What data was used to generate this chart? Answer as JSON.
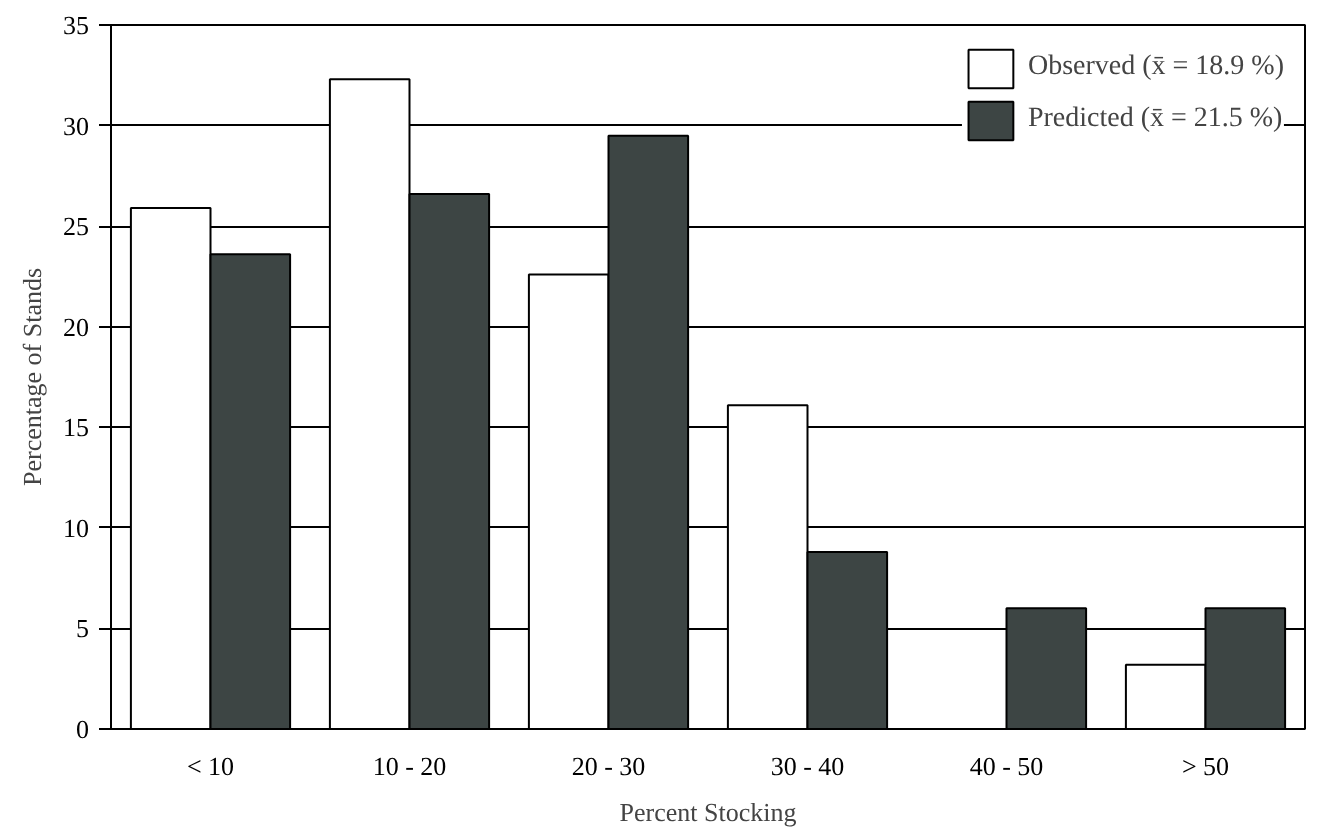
{
  "chart_data": {
    "type": "bar",
    "xlabel": "Percent Stocking",
    "ylabel": "Percentage of Stands",
    "categories": [
      "< 10",
      "10 - 20",
      "20 - 30",
      "30 - 40",
      "40 - 50",
      "> 50"
    ],
    "series": [
      {
        "name": "Observed (x̄ = 18.9 %)",
        "color": "#ffffff",
        "values": [
          25.9,
          32.3,
          22.6,
          16.1,
          0,
          3.2
        ]
      },
      {
        "name": "Predicted (x̄ = 21.5 %)",
        "color": "#3d4544",
        "values": [
          23.6,
          26.6,
          29.5,
          8.8,
          6.0,
          6.0
        ]
      }
    ],
    "ylim": [
      0,
      35
    ],
    "yticks": [
      0,
      5,
      10,
      15,
      20,
      25,
      30,
      35
    ],
    "grid": "y",
    "legend": "top right"
  }
}
